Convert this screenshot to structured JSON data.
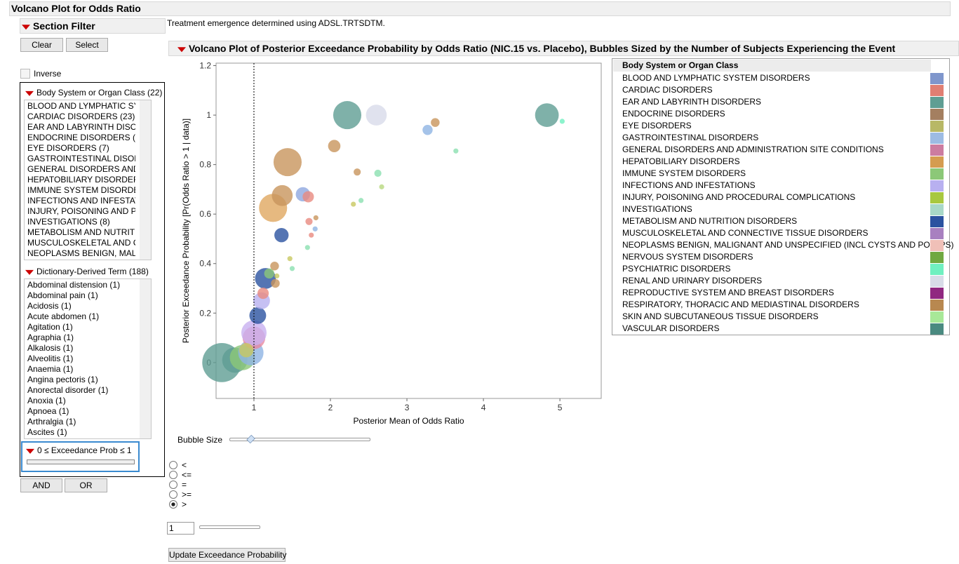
{
  "header": {
    "title": "Volcano Plot for Odds Ratio",
    "note": "Treatment emergence determined using ADSL.TRTSDTM."
  },
  "filter": {
    "title": "Section Filter",
    "clear": "Clear",
    "select": "Select",
    "inverse": "Inverse",
    "body_system": {
      "title": "Body System or Organ Class (22)",
      "items": [
        "BLOOD AND LYMPHATIC SYSTEM DISORDERS",
        "CARDIAC DISORDERS (23)",
        "EAR AND LABYRINTH DISORDERS",
        "ENDOCRINE DISORDERS (2)",
        "EYE DISORDERS (7)",
        "GASTROINTESTINAL DISORDERS",
        "GENERAL DISORDERS AND ADMINISTRATION",
        "HEPATOBILIARY DISORDERS (",
        "IMMUNE SYSTEM DISORDERS",
        "INFECTIONS AND INFESTATIONS",
        "INJURY, POISONING AND PROCEDURAL",
        "INVESTIGATIONS (8)",
        "METABOLISM AND NUTRITION",
        "MUSCULOSKELETAL AND CONNECTIVE",
        "NEOPLASMS BENIGN, MALIGNANT"
      ]
    },
    "terms": {
      "title": "Dictionary-Derived Term (188)",
      "items": [
        "Abdominal distension (1)",
        "Abdominal pain (1)",
        "Acidosis (1)",
        "Acute abdomen (1)",
        "Agitation (1)",
        "Agraphia (1)",
        "Alkalosis (1)",
        "Alveolitis (1)",
        "Anaemia (1)",
        "Angina pectoris (1)",
        "Anorectal disorder (1)",
        "Anoxia (1)",
        "Apnoea (1)",
        "Arthralgia (1)",
        "Ascites (1)"
      ]
    },
    "range": "0 ≤ Exceedance Prob ≤ 1",
    "and": "AND",
    "or": "OR"
  },
  "controls": {
    "bubble_size": "Bubble Size",
    "options": [
      "<",
      "<=",
      "=",
      ">=",
      ">"
    ],
    "selected": 4,
    "threshold": 1,
    "update": "Update Exceedance Probability"
  },
  "chart_data": {
    "type": "bubble",
    "title": "Volcano Plot of Posterior Exceedance Probability by Odds Ratio (NIC.15 vs. Placebo), Bubbles Sized by the Number of Subjects Experiencing the Event",
    "xlabel": "Posterior Mean of Odds Ratio",
    "ylabel": "Posterior Exceedance Probability [Pr(Odds Ratio > 1 | data)]",
    "xlim": [
      0.505,
      5.54
    ],
    "ylim": [
      -0.145,
      1.21
    ],
    "xticks": [
      1,
      2,
      3,
      4,
      5
    ],
    "yticks": [
      0,
      0.2,
      0.4,
      0.6,
      0.8,
      1,
      1.2
    ],
    "reference_x": 1,
    "x": [
      0.58,
      0.75,
      0.85,
      0.96,
      1.0,
      1.0,
      2.22,
      1.44,
      1.25,
      4.83,
      2.6,
      1.37,
      1.15,
      1.05,
      1.1,
      0.9,
      1.64,
      1.36,
      2.05,
      1.71,
      1.12,
      1.2,
      3.27,
      1.27,
      3.37,
      1.28,
      2.35,
      2.62,
      1.72,
      1.8,
      5.03,
      3.64,
      2.67,
      2.3,
      2.4,
      1.81,
      1.75,
      1.7,
      1.47,
      1.5,
      1.3
    ],
    "values": [
      0.0,
      0.01,
      0.02,
      0.04,
      0.1,
      0.12,
      1.0,
      0.81,
      0.625,
      1.0,
      1.0,
      0.675,
      0.34,
      0.19,
      0.25,
      0.05,
      0.68,
      0.515,
      0.875,
      0.67,
      0.28,
      0.36,
      0.94,
      0.39,
      0.97,
      0.32,
      0.77,
      0.765,
      0.57,
      0.54,
      0.975,
      0.855,
      0.71,
      0.64,
      0.655,
      0.585,
      0.515,
      0.465,
      0.42,
      0.38,
      0.35
    ],
    "sizes": [
      60,
      25,
      25,
      25,
      20,
      25,
      31,
      31,
      31,
      22,
      17,
      17,
      17,
      11,
      11,
      8,
      8,
      8,
      6,
      5,
      5,
      4,
      4,
      3,
      3,
      3,
      2,
      2,
      2,
      1,
      1,
      1,
      1,
      1,
      1,
      1,
      1,
      1,
      1,
      1,
      1
    ],
    "colors": [
      "#5f9e93",
      "#5f9e93",
      "#8cc878",
      "#8fb4e3",
      "#e888a0",
      "#c8b0f0",
      "#5f9e93",
      "#c8955d",
      "#e0a860",
      "#5f9e93",
      "#d8dbea",
      "#c8955d",
      "#2b52a0",
      "#2b52a0",
      "#b8b0f0",
      "#c8c860",
      "#8fa8e0",
      "#2b52a0",
      "#c8955d",
      "#e88a80",
      "#e88a80",
      "#8cc878",
      "#8fb4e3",
      "#c8955d",
      "#c8955d",
      "#c8955d",
      "#c8955d",
      "#8be0b0",
      "#e88a80",
      "#8fb4e3",
      "#70f0c0",
      "#8be0b0",
      "#b8d880",
      "#c8c860",
      "#8be0b0",
      "#c8955d",
      "#e88a80",
      "#8be0b0",
      "#c8c860",
      "#8be0b0",
      "#c8c860"
    ],
    "legend": {
      "title": "Body System or Organ Class",
      "names": [
        "BLOOD AND LYMPHATIC SYSTEM DISORDERS",
        "CARDIAC DISORDERS",
        "EAR AND LABYRINTH DISORDERS",
        "ENDOCRINE DISORDERS",
        "EYE DISORDERS",
        "GASTROINTESTINAL DISORDERS",
        "GENERAL DISORDERS AND ADMINISTRATION SITE CONDITIONS",
        "HEPATOBILIARY DISORDERS",
        "IMMUNE SYSTEM DISORDERS",
        "INFECTIONS AND INFESTATIONS",
        "INJURY, POISONING AND PROCEDURAL COMPLICATIONS",
        "INVESTIGATIONS",
        "METABOLISM AND NUTRITION DISORDERS",
        "MUSCULOSKELETAL AND CONNECTIVE TISSUE DISORDERS",
        "NEOPLASMS BENIGN, MALIGNANT AND UNSPECIFIED (INCL CYSTS AND POLYPS)",
        "NERVOUS SYSTEM DISORDERS",
        "PSYCHIATRIC DISORDERS",
        "RENAL AND URINARY DISORDERS",
        "REPRODUCTIVE SYSTEM AND BREAST DISORDERS",
        "RESPIRATORY, THORACIC AND MEDIASTINAL DISORDERS",
        "SKIN AND SUBCUTANEOUS TISSUE DISORDERS",
        "VASCULAR DISORDERS"
      ],
      "colors": [
        "#7f96cc",
        "#e07f73",
        "#5f9e93",
        "#a47f60",
        "#b8b866",
        "#9dbbe3",
        "#cc7ca0",
        "#d59c50",
        "#8cc878",
        "#b8b0f0",
        "#a8c840",
        "#a8d8c8",
        "#2b52a0",
        "#a880c0",
        "#f0c0b8",
        "#70a840",
        "#70f0c0",
        "#d8dce8",
        "#902880",
        "#b88850",
        "#a8e898",
        "#4a8a80"
      ]
    }
  }
}
